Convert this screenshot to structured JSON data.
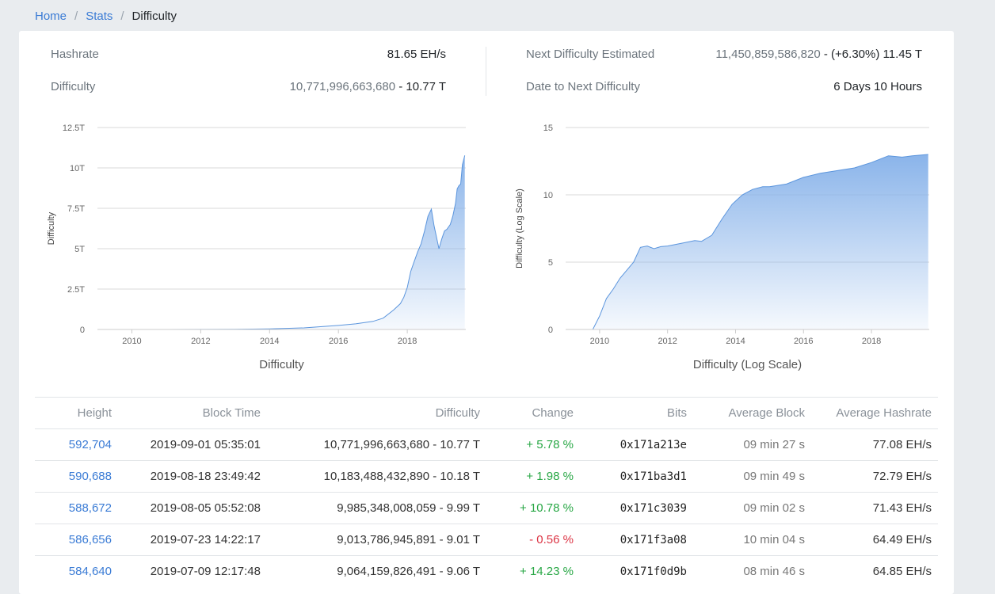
{
  "breadcrumb": {
    "home": "Home",
    "stats": "Stats",
    "current": "Difficulty"
  },
  "stats": {
    "hashrate_label": "Hashrate",
    "hashrate_value": "81.65 EH/s",
    "difficulty_label": "Difficulty",
    "difficulty_value_full": "10,771,996,663,680",
    "difficulty_value_short": "- 10.77 T",
    "next_label": "Next Difficulty Estimated",
    "next_value_full": "11,450,859,586,820",
    "next_value_short": "- (+6.30%) 11.45 T",
    "date_label": "Date to Next Difficulty",
    "date_value": "6 Days 10 Hours"
  },
  "chart_data": [
    {
      "type": "area",
      "title": "",
      "xlabel": "Difficulty",
      "ylabel": "Difficulty",
      "x_ticks": [
        "2010",
        "2012",
        "2014",
        "2016",
        "2018"
      ],
      "y_ticks": [
        "0",
        "2.5T",
        "5T",
        "7.5T",
        "10T",
        "12.5T"
      ],
      "xlim": [
        2009.0,
        2019.7
      ],
      "ylim": [
        0,
        12.5
      ],
      "y_unit": "T",
      "grid": true,
      "color": "#8ab4ea",
      "x": [
        2009.0,
        2011.0,
        2013.0,
        2014.0,
        2015.0,
        2016.0,
        2016.5,
        2017.0,
        2017.3,
        2017.6,
        2017.8,
        2017.9,
        2018.0,
        2018.1,
        2018.2,
        2018.3,
        2018.4,
        2018.5,
        2018.6,
        2018.7,
        2018.78,
        2018.86,
        2018.92,
        2019.0,
        2019.08,
        2019.15,
        2019.25,
        2019.32,
        2019.4,
        2019.45,
        2019.5,
        2019.55,
        2019.6,
        2019.67
      ],
      "y": [
        0,
        0,
        0.01,
        0.04,
        0.1,
        0.25,
        0.35,
        0.5,
        0.7,
        1.2,
        1.6,
        2.0,
        2.6,
        3.6,
        4.2,
        4.8,
        5.3,
        6.1,
        7.0,
        7.45,
        6.4,
        5.6,
        5.0,
        5.6,
        6.1,
        6.2,
        6.5,
        7.0,
        7.8,
        8.7,
        8.9,
        9.0,
        10.2,
        10.77
      ]
    },
    {
      "type": "area",
      "title": "",
      "xlabel": "Difficulty (Log Scale)",
      "ylabel": "Difficulty (Log Scale)",
      "x_ticks": [
        "2010",
        "2012",
        "2014",
        "2016",
        "2018"
      ],
      "y_ticks": [
        "0",
        "5",
        "10",
        "15"
      ],
      "xlim": [
        2009.0,
        2019.7
      ],
      "ylim": [
        0,
        15
      ],
      "grid": true,
      "color": "#8ab4ea",
      "x": [
        2009.0,
        2009.8,
        2010.0,
        2010.2,
        2010.4,
        2010.6,
        2010.8,
        2011.0,
        2011.2,
        2011.4,
        2011.6,
        2011.8,
        2012.0,
        2012.4,
        2012.8,
        2013.0,
        2013.3,
        2013.6,
        2013.9,
        2014.2,
        2014.5,
        2014.8,
        2015.0,
        2015.5,
        2016.0,
        2016.5,
        2017.0,
        2017.5,
        2018.0,
        2018.5,
        2018.9,
        2019.2,
        2019.67
      ],
      "y": [
        0,
        0,
        1.0,
        2.3,
        3.0,
        3.8,
        4.4,
        5.0,
        6.1,
        6.2,
        6.0,
        6.15,
        6.2,
        6.4,
        6.6,
        6.55,
        7.0,
        8.2,
        9.3,
        10.0,
        10.4,
        10.6,
        10.6,
        10.8,
        11.3,
        11.6,
        11.8,
        12.0,
        12.4,
        12.9,
        12.8,
        12.9,
        13.0
      ]
    }
  ],
  "table": {
    "headers": [
      "Height",
      "Block Time",
      "Difficulty",
      "Change",
      "Bits",
      "Average Block",
      "Average Hashrate"
    ],
    "rows": [
      {
        "height": "592,704",
        "time": "2019-09-01 05:35:01",
        "difficulty": "10,771,996,663,680 - 10.77 T",
        "change": "+ 5.78 %",
        "bits": "0x171a213e",
        "avg_block": "09 min 27 s",
        "avg_hashrate": "77.08 EH/s"
      },
      {
        "height": "590,688",
        "time": "2019-08-18 23:49:42",
        "difficulty": "10,183,488,432,890 - 10.18 T",
        "change": "+ 1.98 %",
        "bits": "0x171ba3d1",
        "avg_block": "09 min 49 s",
        "avg_hashrate": "72.79 EH/s"
      },
      {
        "height": "588,672",
        "time": "2019-08-05 05:52:08",
        "difficulty": "9,985,348,008,059 - 9.99 T",
        "change": "+ 10.78 %",
        "bits": "0x171c3039",
        "avg_block": "09 min 02 s",
        "avg_hashrate": "71.43 EH/s"
      },
      {
        "height": "586,656",
        "time": "2019-07-23 14:22:17",
        "difficulty": "9,013,786,945,891 - 9.01 T",
        "change": "- 0.56 %",
        "bits": "0x171f3a08",
        "avg_block": "10 min 04 s",
        "avg_hashrate": "64.49 EH/s"
      },
      {
        "height": "584,640",
        "time": "2019-07-09 12:17:48",
        "difficulty": "9,064,159,826,491 - 9.06 T",
        "change": "+ 14.23 %",
        "bits": "0x171f0d9b",
        "avg_block": "08 min 46 s",
        "avg_hashrate": "64.85 EH/s"
      }
    ]
  }
}
